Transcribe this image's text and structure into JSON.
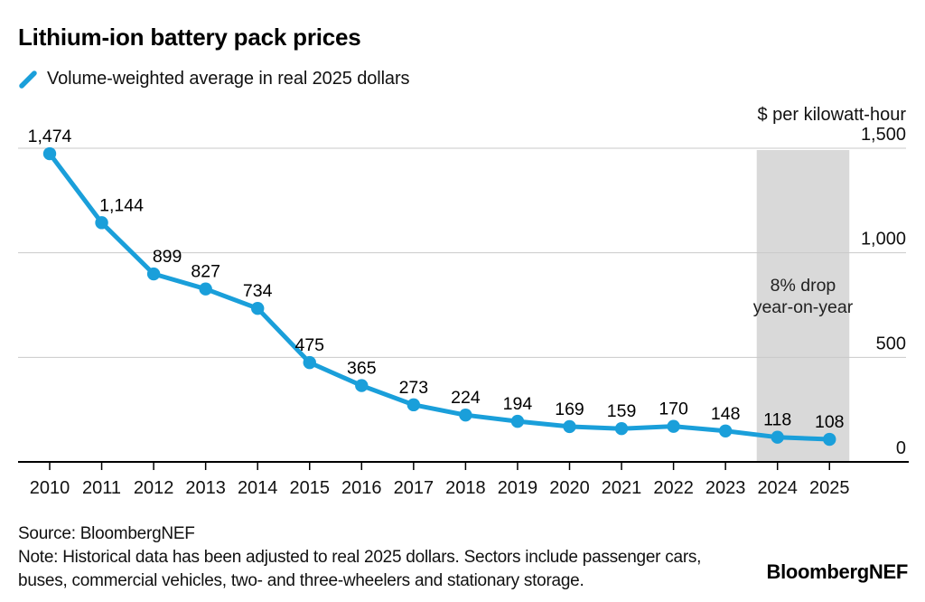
{
  "header": {
    "title": "Lithium-ion battery pack prices",
    "legend_label": "Volume-weighted average in real 2025 dollars"
  },
  "chart_data": {
    "type": "line",
    "title": "Lithium-ion battery pack prices",
    "series_name": "Volume-weighted average in real 2025 dollars",
    "categories": [
      "2010",
      "2011",
      "2012",
      "2013",
      "2014",
      "2015",
      "2016",
      "2017",
      "2018",
      "2019",
      "2020",
      "2021",
      "2022",
      "2023",
      "2024",
      "2025"
    ],
    "values": [
      1474,
      1144,
      899,
      827,
      734,
      475,
      365,
      273,
      224,
      194,
      169,
      159,
      170,
      148,
      118,
      108
    ],
    "value_labels": [
      "1,474",
      "1,144",
      "899",
      "827",
      "734",
      "475",
      "365",
      "273",
      "224",
      "194",
      "169",
      "159",
      "170",
      "148",
      "118",
      "108"
    ],
    "xlabel": "",
    "ylabel": "$ per kilowatt-hour",
    "ylim": [
      0,
      1500
    ],
    "grid": true,
    "y_ticks": [
      {
        "value": 1500,
        "label": "1,500"
      },
      {
        "value": 1000,
        "label": "1,000"
      },
      {
        "value": 500,
        "label": "500"
      },
      {
        "value": 0,
        "label": "0"
      }
    ],
    "highlight_band": {
      "from_category": "2024",
      "to_category": "2025",
      "annotation_lines": [
        "8% drop",
        "year-on-year"
      ]
    },
    "colors": {
      "line": "#1a9fda",
      "band": "#d9d9d9",
      "grid": "#c9c9c9",
      "axis": "#000000",
      "text": "#111111"
    },
    "legend_position": "top-left"
  },
  "footer": {
    "source": "Source: BloombergNEF",
    "note_lines": [
      "Note: Historical data has been adjusted to real 2025 dollars. Sectors include passenger cars,",
      "buses, commercial vehicles, two- and three-wheelers and stationary storage."
    ],
    "brand": "BloombergNEF"
  }
}
